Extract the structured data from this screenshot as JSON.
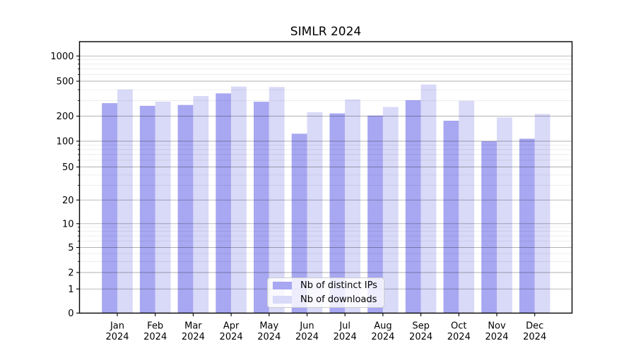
{
  "chart_data": {
    "type": "bar",
    "title": "SIMLR 2024",
    "categories": [
      "Jan",
      "Feb",
      "Mar",
      "Apr",
      "May",
      "Jun",
      "Jul",
      "Aug",
      "Sep",
      "Oct",
      "Nov",
      "Dec"
    ],
    "x_year_label": "2024",
    "series": [
      {
        "name": "Nb of distinct IPs",
        "color": "#a7a7f2",
        "values": [
          281,
          262,
          268,
          363,
          292,
          123,
          215,
          203,
          304,
          176,
          100,
          107
        ]
      },
      {
        "name": "Nb of downloads",
        "color": "#d9d9f8",
        "values": [
          401,
          293,
          339,
          434,
          429,
          222,
          310,
          254,
          458,
          299,
          193,
          212
        ]
      }
    ],
    "y_ticks": [
      0,
      1,
      2,
      5,
      10,
      20,
      50,
      100,
      200,
      500,
      1000
    ],
    "y_scale": "symlog",
    "ylim": [
      0,
      1450
    ],
    "xlabel": "",
    "ylabel": "",
    "grid": true,
    "legend_position": "lower center"
  },
  "colors": {
    "spine": "#000000",
    "grid_major": "rgba(0,0,0,0.30)",
    "grid_minor": "rgba(0,0,0,0.09)",
    "tick_label": "#000000",
    "background": "#ffffff"
  }
}
